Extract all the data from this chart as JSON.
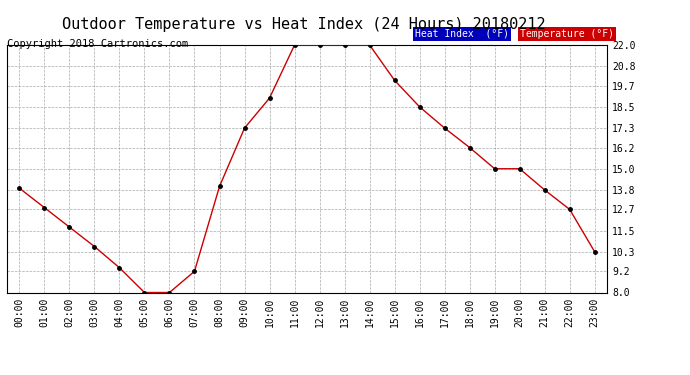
{
  "title": "Outdoor Temperature vs Heat Index (24 Hours) 20180212",
  "copyright": "Copyright 2018 Cartronics.com",
  "hours": [
    "00:00",
    "01:00",
    "02:00",
    "03:00",
    "04:00",
    "05:00",
    "06:00",
    "07:00",
    "08:00",
    "09:00",
    "10:00",
    "11:00",
    "12:00",
    "13:00",
    "14:00",
    "15:00",
    "16:00",
    "17:00",
    "18:00",
    "19:00",
    "20:00",
    "21:00",
    "22:00",
    "23:00"
  ],
  "temperature": [
    13.9,
    12.8,
    11.7,
    10.6,
    9.4,
    8.0,
    8.0,
    9.2,
    14.0,
    17.3,
    19.0,
    22.0,
    22.0,
    22.0,
    22.0,
    20.0,
    18.5,
    17.3,
    16.2,
    15.0,
    15.0,
    13.8,
    12.7,
    10.3
  ],
  "ylim": [
    8.0,
    22.0
  ],
  "yticks": [
    8.0,
    9.2,
    10.3,
    11.5,
    12.7,
    13.8,
    15.0,
    16.2,
    17.3,
    18.5,
    19.7,
    20.8,
    22.0
  ],
  "line_color": "#cc0000",
  "marker_color": "#000000",
  "background_color": "#ffffff",
  "grid_color": "#aaaaaa",
  "legend_heat_bg": "#0000bb",
  "legend_temp_bg": "#cc0000",
  "legend_text_color": "#ffffff",
  "title_fontsize": 11,
  "copyright_fontsize": 7.5
}
